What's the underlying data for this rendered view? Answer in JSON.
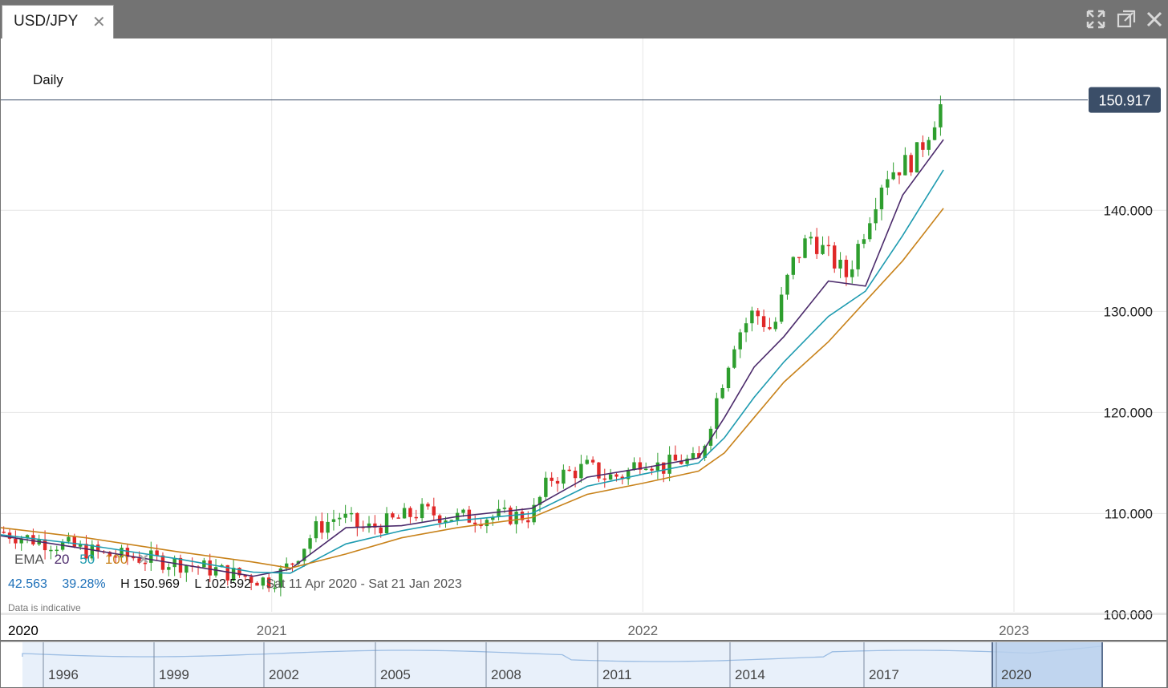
{
  "window": {
    "tab_title": "USD/JPY",
    "tab_close_icon": "close-icon",
    "icons": [
      "fullscreen-icon",
      "popout-icon",
      "close-window-icon"
    ]
  },
  "chart": {
    "period_label": "Daily",
    "current_price_label": "150.917",
    "ema": {
      "label": "EMA",
      "p20": "20",
      "p50": "50",
      "p100": "100",
      "remove_icon": "close-icon"
    },
    "stats": {
      "change": "42.563",
      "change_pct": "39.28%",
      "high": "H 150.969",
      "low": "L 102.592",
      "range": "Sat 11 Apr 2020 - Sat 21 Jan 2023"
    },
    "disclaimer": "Data is indicative",
    "colors": {
      "up": "#2e9e2e",
      "down": "#e02828",
      "ema20": "#4b2a6b",
      "ema50": "#1e9bb0",
      "ema100": "#c8821a",
      "price_line": "#3b4e68",
      "grid": "#e6e6e6"
    }
  },
  "navigator": {
    "labels": [
      "1996",
      "1999",
      "2002",
      "2005",
      "2008",
      "2011",
      "2014",
      "2017",
      "2020"
    ]
  },
  "chart_data": {
    "type": "line",
    "title": "USD/JPY",
    "subtitle": "Daily",
    "xlabel": "",
    "ylabel": "",
    "ylim": [
      97.5,
      157
    ],
    "y_ticks": [
      "100.000",
      "110.000",
      "120.000",
      "130.000",
      "140.000"
    ],
    "x_ticks": [
      "2020",
      "2021",
      "2022",
      "2023"
    ],
    "x_tick_values": [
      2020.0,
      2021.0,
      2022.0,
      2023.0
    ],
    "xlim": [
      2020.27,
      2023.08
    ],
    "current_price": 150.917,
    "series": [
      {
        "name": "USD/JPY",
        "x": [
          2020.27,
          2020.35,
          2020.45,
          2020.55,
          2020.65,
          2020.75,
          2020.85,
          2020.95,
          2021.0,
          2021.05,
          2021.12,
          2021.18,
          2021.25,
          2021.32,
          2021.4,
          2021.5,
          2021.6,
          2021.7,
          2021.75,
          2021.8,
          2021.85,
          2021.9,
          2021.95,
          2022.0,
          2022.05,
          2022.1,
          2022.15,
          2022.2,
          2022.25,
          2022.3,
          2022.35,
          2022.4,
          2022.45,
          2022.5,
          2022.55,
          2022.6,
          2022.65,
          2022.7,
          2022.73,
          2022.76,
          2022.79,
          2022.81
        ],
        "values": [
          108.2,
          107.5,
          106.8,
          105.9,
          105.6,
          105.1,
          104.4,
          103.6,
          103.3,
          105.0,
          108.5,
          109.8,
          108.4,
          109.2,
          110.2,
          109.6,
          109.7,
          109.8,
          113.5,
          114.0,
          114.6,
          113.6,
          113.8,
          115.6,
          114.5,
          115.3,
          115.0,
          121.5,
          127.5,
          130.0,
          128.0,
          134.5,
          137.5,
          135.5,
          133.5,
          138.5,
          143.5,
          144.5,
          145.0,
          147.0,
          149.5,
          150.9
        ]
      },
      {
        "name": "EMA 20",
        "x": [
          2020.27,
          2020.5,
          2020.75,
          2020.95,
          2021.05,
          2021.2,
          2021.35,
          2021.5,
          2021.7,
          2021.85,
          2022.0,
          2022.15,
          2022.22,
          2022.3,
          2022.38,
          2022.5,
          2022.6,
          2022.7,
          2022.81
        ],
        "values": [
          107.8,
          106.5,
          105.0,
          103.8,
          104.5,
          108.6,
          108.8,
          109.7,
          110.5,
          113.6,
          114.5,
          115.5,
          119.5,
          124.5,
          127.5,
          133.0,
          132.5,
          141.5,
          147.0
        ]
      },
      {
        "name": "EMA 50",
        "x": [
          2020.27,
          2020.5,
          2020.75,
          2020.95,
          2021.05,
          2021.2,
          2021.35,
          2021.5,
          2021.7,
          2021.85,
          2022.0,
          2022.15,
          2022.22,
          2022.3,
          2022.38,
          2022.5,
          2022.6,
          2022.7,
          2022.81
        ],
        "values": [
          107.9,
          106.9,
          105.5,
          104.2,
          104.1,
          107.0,
          108.3,
          109.3,
          110.0,
          112.7,
          113.9,
          115.0,
          117.5,
          121.5,
          125.0,
          129.5,
          132.0,
          137.5,
          144.0
        ]
      },
      {
        "name": "EMA 100",
        "x": [
          2020.27,
          2020.5,
          2020.75,
          2020.95,
          2021.05,
          2021.2,
          2021.35,
          2021.5,
          2021.7,
          2021.85,
          2022.0,
          2022.15,
          2022.22,
          2022.3,
          2022.38,
          2022.5,
          2022.6,
          2022.7,
          2022.81
        ],
        "values": [
          108.6,
          107.6,
          106.2,
          105.2,
          104.6,
          106.0,
          107.6,
          108.6,
          109.6,
          111.9,
          113.0,
          114.2,
          116.0,
          119.5,
          123.0,
          127.0,
          131.0,
          135.0,
          140.2
        ]
      }
    ]
  }
}
